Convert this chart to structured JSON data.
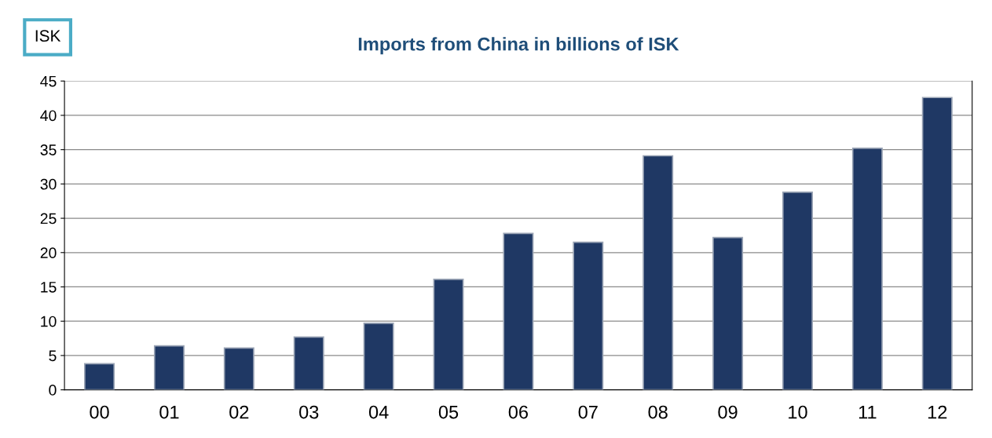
{
  "chart_data": {
    "type": "bar",
    "title": "Imports from China in billions of ISK",
    "ylabel": "ISK",
    "categories": [
      "00",
      "01",
      "02",
      "03",
      "04",
      "05",
      "06",
      "07",
      "08",
      "09",
      "10",
      "11",
      "12"
    ],
    "values": [
      3.8,
      6.4,
      6.1,
      7.7,
      9.7,
      16.1,
      22.8,
      21.5,
      34.1,
      22.2,
      28.8,
      35.2,
      42.6
    ],
    "color": "#1f3864",
    "ylim": [
      0,
      45
    ],
    "yticks": [
      0,
      5,
      10,
      15,
      20,
      25,
      30,
      35,
      40,
      45
    ],
    "grid": "y"
  }
}
